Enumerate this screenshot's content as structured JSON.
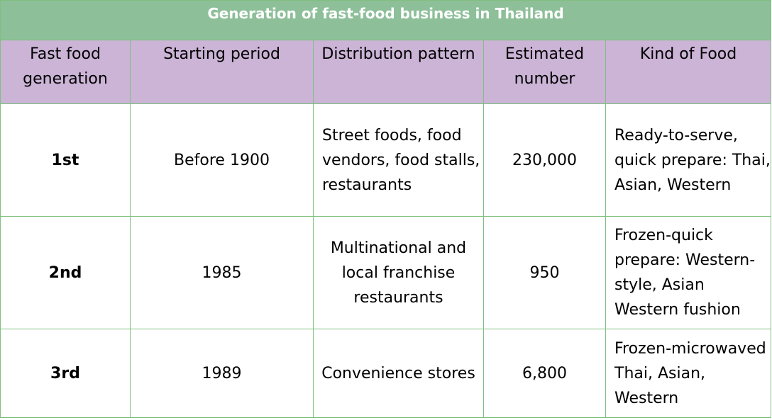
{
  "table": {
    "title": "Generation of fast-food business in Thailand",
    "headers": [
      "Fast food generation",
      "Starting period",
      "Distribution pattern",
      "Estimated number",
      "Kind of Food"
    ],
    "rows": [
      {
        "generation": "1st",
        "starting_period": "Before 1900",
        "distribution_pattern": "Street foods, food vendors, food stalls, restaurants",
        "estimated_number": "230,000",
        "kind_of_food": "Ready-to-serve, quick prepare: Thai, Asian, Western"
      },
      {
        "generation": "2nd",
        "starting_period": "1985",
        "distribution_pattern": "Multinational and local franchise restaurants",
        "estimated_number": "950",
        "kind_of_food": "Frozen-quick prepare: Western-style, Asian Western fushion"
      },
      {
        "generation": "3rd",
        "starting_period": "1989",
        "distribution_pattern": "Convenience stores",
        "estimated_number": "6,800",
        "kind_of_food": "Frozen-microwaved Thai, Asian, Western"
      }
    ]
  },
  "colors": {
    "title_bg": "#8dbf99",
    "header_bg": "#cbb4d6",
    "border": "#7fbf7f"
  }
}
